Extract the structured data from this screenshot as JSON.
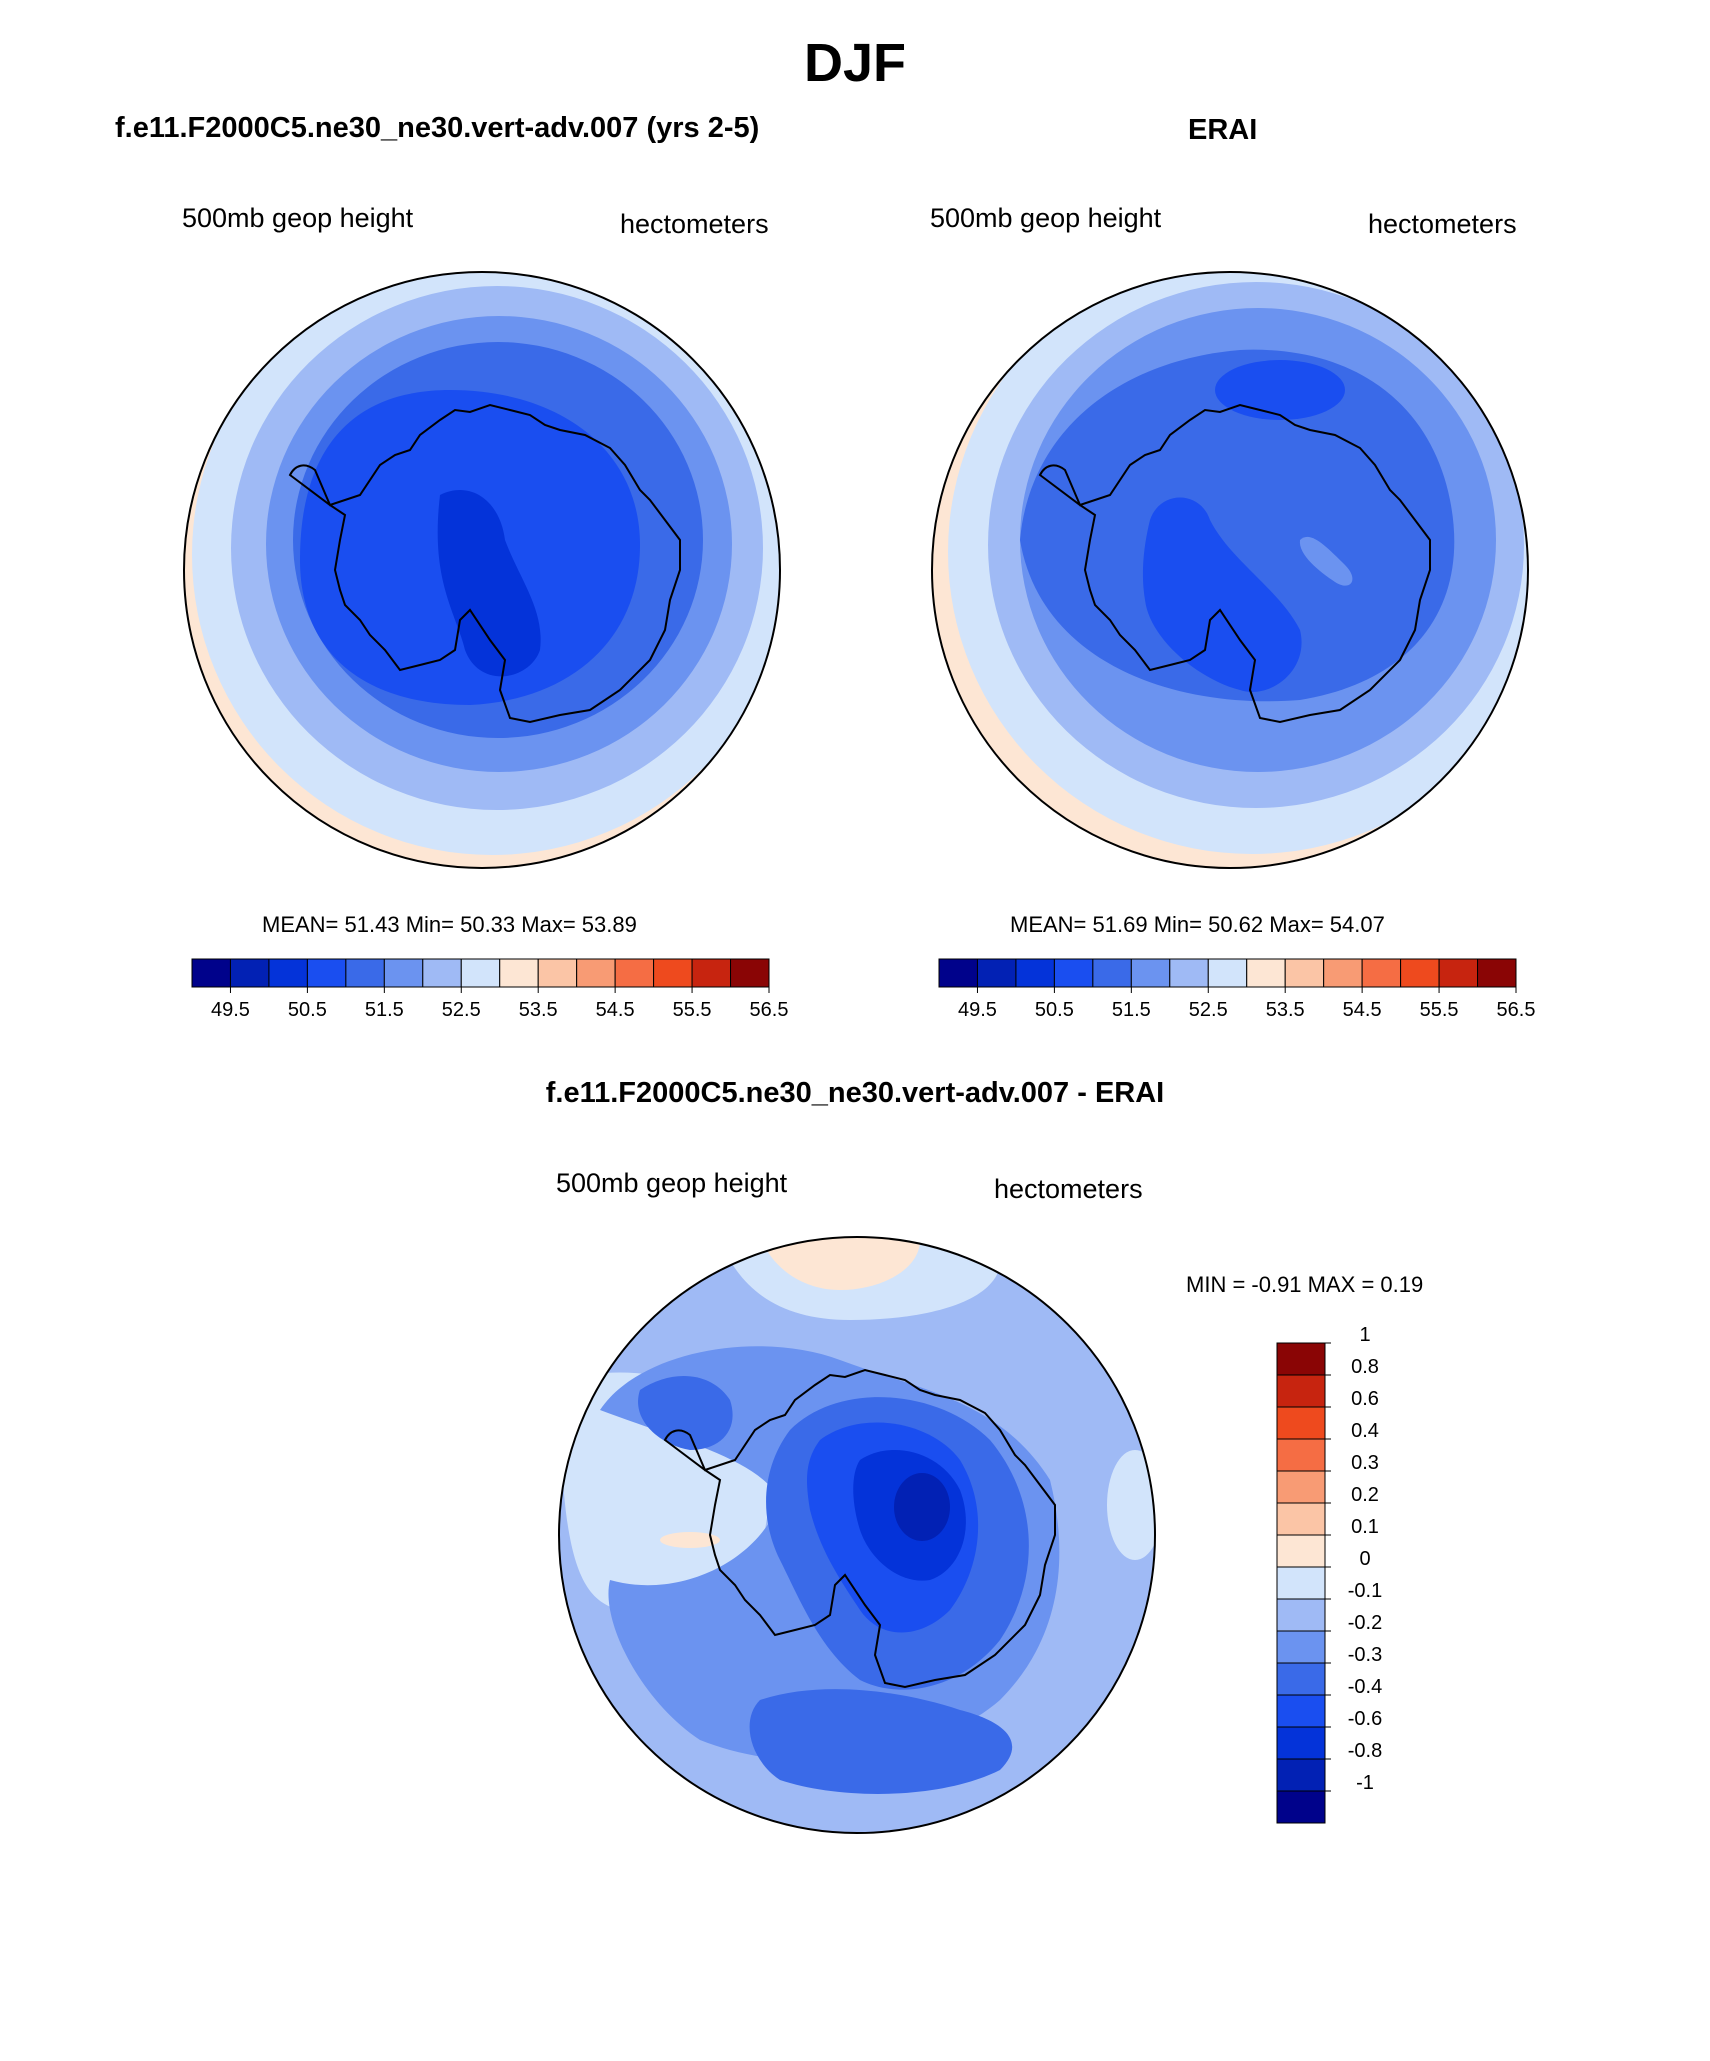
{
  "main_title": "DJF",
  "panels": [
    {
      "title": "f.e11.F2000C5.ne30_ne30.vert-adv.007 (yrs 2-5)",
      "left_label": "500mb geop height",
      "right_label": "hectometers",
      "stats": "MEAN=  51.43  Min=  50.33  Max=  53.89"
    },
    {
      "title": "ERAI",
      "left_label": "500mb geop height",
      "right_label": "hectometers",
      "stats": "MEAN=  51.69  Min=  50.62  Max=  54.07"
    },
    {
      "title": "f.e11.F2000C5.ne30_ne30.vert-adv.007 - ERAI",
      "left_label": "500mb geop height",
      "right_label": "hectometers",
      "stats": "MIN =  -0.91 MAX =   0.19"
    }
  ],
  "colorbar_h": {
    "colors": [
      "#00028b",
      "#0221b4",
      "#0433d9",
      "#1a4ef0",
      "#3a6ae8",
      "#6b93f0",
      "#9fbaf5",
      "#d2e4fb",
      "#fde6d4",
      "#fbc5a6",
      "#f89b74",
      "#f56d44",
      "#ee4a1e",
      "#c7240f",
      "#8a0505"
    ],
    "tick_labels": [
      "49.5",
      "50.5",
      "51.5",
      "52.5",
      "53.5",
      "54.5",
      "55.5",
      "56.5"
    ]
  },
  "colorbar_v": {
    "colors": [
      "#00028b",
      "#0221b4",
      "#0433d9",
      "#1a4ef0",
      "#3a6ae8",
      "#6b93f0",
      "#9fbaf5",
      "#d2e4fb",
      "#fde6d4",
      "#fbc5a6",
      "#f89b74",
      "#f56d44",
      "#ee4a1e",
      "#c7240f",
      "#8a0505"
    ],
    "tick_labels": [
      "-1",
      "-0.8",
      "-0.6",
      "-0.4",
      "-0.3",
      "-0.2",
      "-0.1",
      "0",
      "0.1",
      "0.2",
      "0.3",
      "0.4",
      "0.6",
      "0.8",
      "1"
    ]
  },
  "colors": {
    "ring_outer": "#fde6d4",
    "ring_2": "#d2e4fb",
    "ring_3": "#9fbaf5",
    "ring_4": "#6b93f0",
    "ring_5": "#3a6ae8",
    "core": "#1a4ef0",
    "deep": "#0433d9",
    "deepest": "#0221b4"
  }
}
